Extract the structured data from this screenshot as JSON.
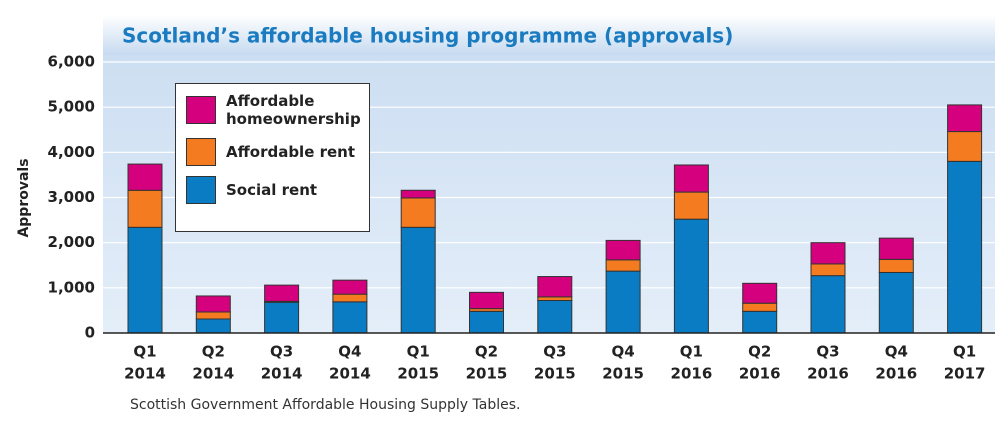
{
  "chart_data": {
    "type": "stacked_bar",
    "title": "Scotland’s affordable housing programme (approvals)",
    "y_label": "Approvals",
    "source": "Scottish Government Affordable Housing Supply Tables.",
    "categories": [
      [
        "Q1",
        "2014"
      ],
      [
        "Q2",
        "2014"
      ],
      [
        "Q3",
        "2014"
      ],
      [
        "Q4",
        "2014"
      ],
      [
        "Q1",
        "2015"
      ],
      [
        "Q2",
        "2015"
      ],
      [
        "Q3",
        "2015"
      ],
      [
        "Q4",
        "2015"
      ],
      [
        "Q1",
        "2016"
      ],
      [
        "Q2",
        "2016"
      ],
      [
        "Q3",
        "2016"
      ],
      [
        "Q4",
        "2016"
      ],
      [
        "Q1",
        "2017"
      ]
    ],
    "series": [
      {
        "name": "Social rent",
        "color": "#0a7cc4",
        "values": [
          2340,
          310,
          680,
          690,
          2340,
          480,
          720,
          1370,
          2520,
          480,
          1270,
          1340,
          3800
        ]
      },
      {
        "name": "Affordable rent",
        "color": "#f47b20",
        "values": [
          820,
          155,
          20,
          170,
          650,
          60,
          80,
          250,
          600,
          180,
          260,
          290,
          660
        ]
      },
      {
        "name": "Affordable homeownership",
        "color": "#d4007d",
        "values": [
          580,
          355,
          360,
          310,
          170,
          360,
          450,
          430,
          600,
          440,
          470,
          470,
          590
        ]
      }
    ],
    "ylim": [
      0,
      6000
    ],
    "yticks": [
      0,
      {
        "value": 1000,
        "label": "1,000"
      },
      {
        "value": 2000,
        "label": "2,000"
      },
      {
        "value": 3000,
        "label": "3,000"
      },
      {
        "value": 4000,
        "label": "4,000"
      },
      {
        "value": 5000,
        "label": "5,000"
      },
      {
        "value": 6000,
        "label": "6,000"
      }
    ],
    "grid": true
  }
}
